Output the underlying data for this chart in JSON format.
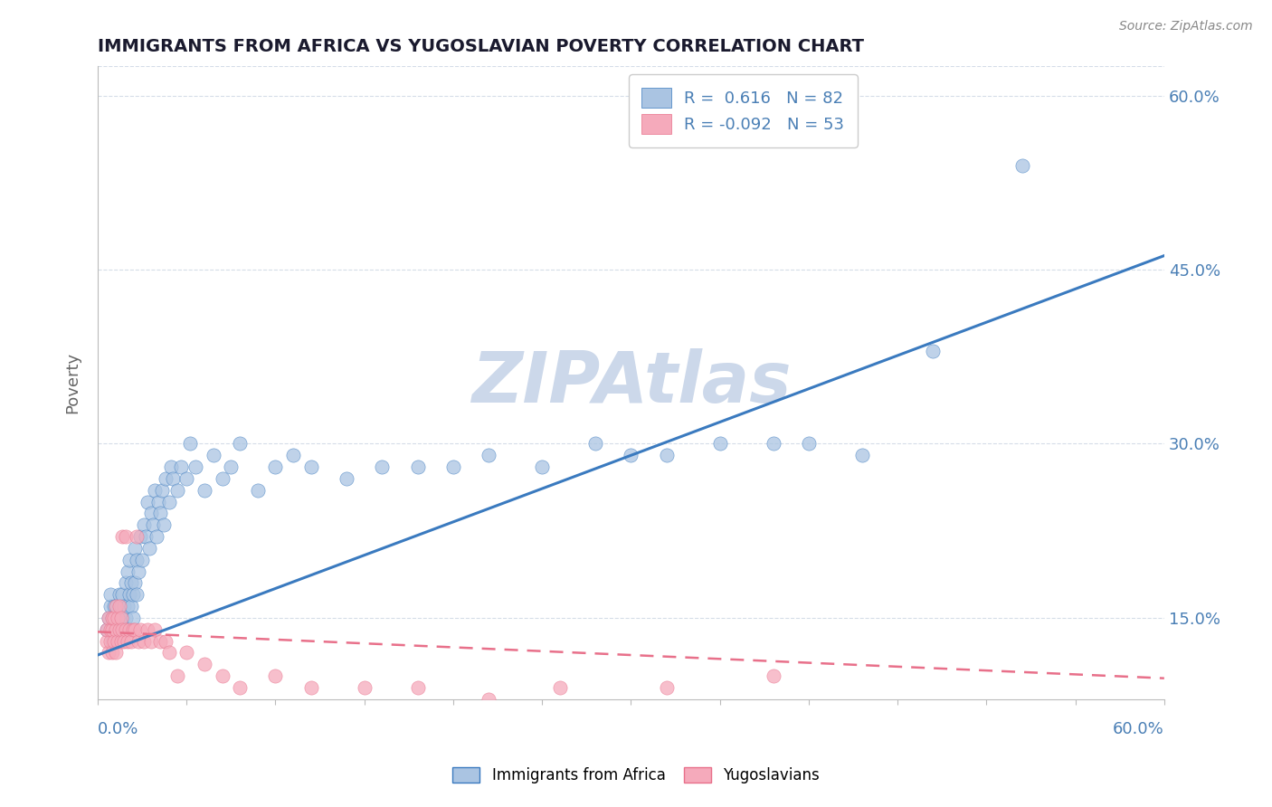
{
  "title": "IMMIGRANTS FROM AFRICA VS YUGOSLAVIAN POVERTY CORRELATION CHART",
  "source": "Source: ZipAtlas.com",
  "ylabel": "Poverty",
  "xlim": [
    0.0,
    0.6
  ],
  "ylim": [
    0.08,
    0.625
  ],
  "blue_R": 0.616,
  "blue_N": 82,
  "pink_R": -0.092,
  "pink_N": 53,
  "blue_color": "#aac4e2",
  "pink_color": "#f5aabb",
  "blue_line_color": "#3a7abf",
  "pink_line_color": "#e8708a",
  "watermark": "ZIPAtlas",
  "watermark_color": "#ccd8ea",
  "legend_label_blue": "Immigrants from Africa",
  "legend_label_pink": "Yugoslavians",
  "title_color": "#1a1a2e",
  "axis_color": "#4a7fb5",
  "grid_color": "#d5dde8",
  "background_color": "#ffffff",
  "blue_line_x0": 0.0,
  "blue_line_y0": 0.118,
  "blue_line_x1": 0.6,
  "blue_line_y1": 0.462,
  "pink_line_x0": 0.0,
  "pink_line_y0": 0.138,
  "pink_line_x1": 0.6,
  "pink_line_y1": 0.098,
  "blue_scatter_x": [
    0.005,
    0.006,
    0.007,
    0.007,
    0.008,
    0.008,
    0.009,
    0.009,
    0.01,
    0.01,
    0.01,
    0.012,
    0.012,
    0.012,
    0.013,
    0.013,
    0.014,
    0.014,
    0.015,
    0.015,
    0.016,
    0.016,
    0.017,
    0.017,
    0.018,
    0.018,
    0.019,
    0.019,
    0.02,
    0.02,
    0.021,
    0.021,
    0.022,
    0.022,
    0.023,
    0.024,
    0.025,
    0.026,
    0.027,
    0.028,
    0.029,
    0.03,
    0.031,
    0.032,
    0.033,
    0.034,
    0.035,
    0.036,
    0.037,
    0.038,
    0.04,
    0.041,
    0.042,
    0.045,
    0.047,
    0.05,
    0.052,
    0.055,
    0.06,
    0.065,
    0.07,
    0.075,
    0.08,
    0.09,
    0.1,
    0.11,
    0.12,
    0.14,
    0.16,
    0.18,
    0.2,
    0.22,
    0.25,
    0.28,
    0.3,
    0.32,
    0.35,
    0.38,
    0.4,
    0.43,
    0.47,
    0.52
  ],
  "blue_scatter_y": [
    0.14,
    0.15,
    0.16,
    0.17,
    0.13,
    0.15,
    0.14,
    0.16,
    0.13,
    0.14,
    0.16,
    0.14,
    0.15,
    0.17,
    0.14,
    0.16,
    0.15,
    0.17,
    0.14,
    0.16,
    0.15,
    0.18,
    0.16,
    0.19,
    0.17,
    0.2,
    0.16,
    0.18,
    0.15,
    0.17,
    0.18,
    0.21,
    0.17,
    0.2,
    0.19,
    0.22,
    0.2,
    0.23,
    0.22,
    0.25,
    0.21,
    0.24,
    0.23,
    0.26,
    0.22,
    0.25,
    0.24,
    0.26,
    0.23,
    0.27,
    0.25,
    0.28,
    0.27,
    0.26,
    0.28,
    0.27,
    0.3,
    0.28,
    0.26,
    0.29,
    0.27,
    0.28,
    0.3,
    0.26,
    0.28,
    0.29,
    0.28,
    0.27,
    0.28,
    0.28,
    0.28,
    0.29,
    0.28,
    0.3,
    0.29,
    0.29,
    0.3,
    0.3,
    0.3,
    0.29,
    0.38,
    0.54
  ],
  "pink_scatter_x": [
    0.005,
    0.005,
    0.006,
    0.006,
    0.007,
    0.007,
    0.008,
    0.008,
    0.008,
    0.009,
    0.009,
    0.01,
    0.01,
    0.01,
    0.011,
    0.011,
    0.012,
    0.012,
    0.013,
    0.013,
    0.014,
    0.014,
    0.015,
    0.016,
    0.016,
    0.017,
    0.018,
    0.019,
    0.02,
    0.021,
    0.022,
    0.023,
    0.024,
    0.026,
    0.028,
    0.03,
    0.032,
    0.035,
    0.038,
    0.04,
    0.045,
    0.05,
    0.06,
    0.07,
    0.08,
    0.1,
    0.12,
    0.15,
    0.18,
    0.22,
    0.26,
    0.32,
    0.38
  ],
  "pink_scatter_y": [
    0.13,
    0.14,
    0.12,
    0.15,
    0.13,
    0.14,
    0.12,
    0.14,
    0.15,
    0.13,
    0.15,
    0.12,
    0.14,
    0.16,
    0.13,
    0.15,
    0.14,
    0.16,
    0.13,
    0.15,
    0.22,
    0.14,
    0.13,
    0.14,
    0.22,
    0.13,
    0.14,
    0.13,
    0.14,
    0.14,
    0.22,
    0.13,
    0.14,
    0.13,
    0.14,
    0.13,
    0.14,
    0.13,
    0.13,
    0.12,
    0.1,
    0.12,
    0.11,
    0.1,
    0.09,
    0.1,
    0.09,
    0.09,
    0.09,
    0.08,
    0.09,
    0.09,
    0.1
  ]
}
